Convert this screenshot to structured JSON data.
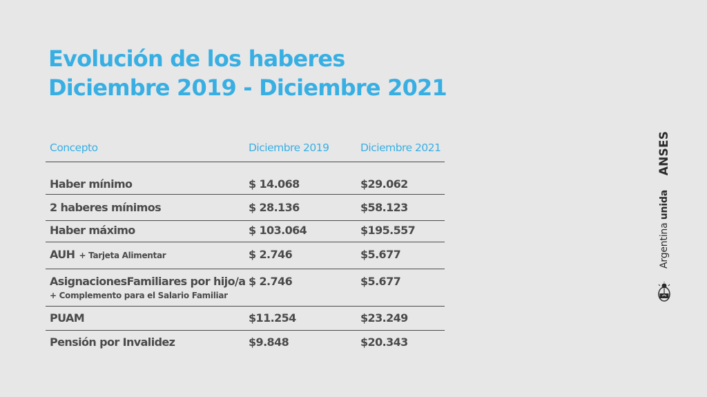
{
  "title": {
    "line1": "Evolución de los haberes",
    "line2": "Diciembre 2019 - Diciembre 2021"
  },
  "table": {
    "headers": [
      "Concepto",
      "Diciembre 2019",
      "Diciembre 2021"
    ],
    "rows": [
      {
        "concept": "Haber mínimo",
        "note": "",
        "v2019": "$ 14.068",
        "v2021": "$29.062"
      },
      {
        "concept": "2 haberes mínimos",
        "note": "",
        "v2019": "$ 28.136",
        "v2021": "$58.123"
      },
      {
        "concept": "Haber máximo",
        "note": "",
        "v2019": "$ 103.064",
        "v2021": "$195.557"
      },
      {
        "concept": "AUH",
        "note": "+ Tarjeta Alimentar",
        "v2019": "$ 2.746",
        "v2021": "$5.677"
      },
      {
        "concept": "AsignacionesFamiliares por hijo/a",
        "note": "+ Complemento para el Salario Familiar",
        "v2019": "$ 2.746",
        "v2021": "$5.677"
      },
      {
        "concept": "PUAM",
        "note": "",
        "v2019": "$11.254",
        "v2021": "$23.249"
      },
      {
        "concept": "Pensión por Invalidez",
        "note": "",
        "v2019": "$9.848",
        "v2021": "$20.343"
      }
    ]
  },
  "brand": {
    "anses": "ANSES",
    "argentina": "Argentina",
    "unida": "unida",
    "shield_icon": "argentina-coat-of-arms-icon"
  },
  "colors": {
    "accent": "#38afe3",
    "text": "#4a4a4a",
    "background": "#e7e7e8"
  }
}
